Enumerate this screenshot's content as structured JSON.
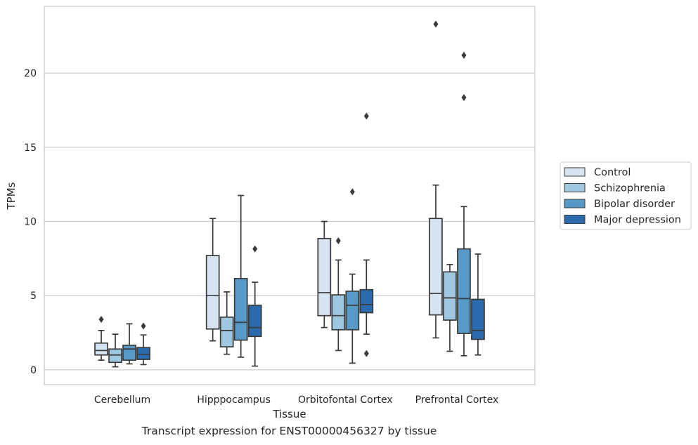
{
  "chart_data": {
    "type": "box",
    "xlabel": "Tissue",
    "ylabel": "TPMs",
    "caption": "Transcript expression for ENST00000456327 by tissue",
    "ylim": [
      -1,
      24.5
    ],
    "yticks": [
      0,
      5,
      10,
      15,
      20
    ],
    "grid": true,
    "legend_position": "right",
    "categories": [
      "Cerebellum",
      "Hipppocampus",
      "Orbitofontal Cortex",
      "Prefrontal Cortex"
    ],
    "series": [
      {
        "name": "Control",
        "color": "#d6e4f2",
        "boxes": [
          {
            "whisker_low": 0.65,
            "q1": 1.0,
            "median": 1.3,
            "q3": 1.8,
            "whisker_high": 2.65,
            "outliers": [
              3.4
            ]
          },
          {
            "whisker_low": 1.95,
            "q1": 2.75,
            "median": 5.0,
            "q3": 7.7,
            "whisker_high": 10.2,
            "outliers": []
          },
          {
            "whisker_low": 2.85,
            "q1": 3.65,
            "median": 5.2,
            "q3": 8.85,
            "whisker_high": 10.0,
            "outliers": []
          },
          {
            "whisker_low": 2.15,
            "q1": 3.7,
            "median": 5.15,
            "q3": 10.2,
            "whisker_high": 12.45,
            "outliers": [
              23.3
            ]
          }
        ]
      },
      {
        "name": "Schizophrenia",
        "color": "#9fc8e0",
        "boxes": [
          {
            "whisker_low": 0.2,
            "q1": 0.5,
            "median": 1.0,
            "q3": 1.4,
            "whisker_high": 2.4,
            "outliers": []
          },
          {
            "whisker_low": 1.05,
            "q1": 1.55,
            "median": 2.65,
            "q3": 3.55,
            "whisker_high": 5.25,
            "outliers": []
          },
          {
            "whisker_low": 1.3,
            "q1": 2.7,
            "median": 3.65,
            "q3": 5.05,
            "whisker_high": 7.4,
            "outliers": [
              8.7
            ]
          },
          {
            "whisker_low": 1.25,
            "q1": 3.35,
            "median": 4.85,
            "q3": 6.6,
            "whisker_high": 7.1,
            "outliers": []
          }
        ]
      },
      {
        "name": "Bipolar disorder",
        "color": "#5799c7",
        "boxes": [
          {
            "whisker_low": 0.4,
            "q1": 0.65,
            "median": 1.4,
            "q3": 1.65,
            "whisker_high": 3.1,
            "outliers": []
          },
          {
            "whisker_low": 0.85,
            "q1": 2.0,
            "median": 3.2,
            "q3": 6.15,
            "whisker_high": 11.75,
            "outliers": []
          },
          {
            "whisker_low": 0.45,
            "q1": 2.7,
            "median": 4.35,
            "q3": 5.3,
            "whisker_high": 6.45,
            "outliers": [
              12.0
            ]
          },
          {
            "whisker_low": 0.95,
            "q1": 2.45,
            "median": 4.8,
            "q3": 8.15,
            "whisker_high": 11.0,
            "outliers": [
              21.2,
              18.35
            ]
          }
        ]
      },
      {
        "name": "Major depression",
        "color": "#2a6aad",
        "boxes": [
          {
            "whisker_low": 0.35,
            "q1": 0.7,
            "median": 1.05,
            "q3": 1.5,
            "whisker_high": 2.35,
            "outliers": [
              2.95
            ]
          },
          {
            "whisker_low": 0.25,
            "q1": 2.25,
            "median": 2.85,
            "q3": 4.35,
            "whisker_high": 5.9,
            "outliers": [
              8.15
            ]
          },
          {
            "whisker_low": 2.4,
            "q1": 3.85,
            "median": 4.4,
            "q3": 5.4,
            "whisker_high": 7.4,
            "outliers": [
              17.1,
              1.1
            ]
          },
          {
            "whisker_low": 1.0,
            "q1": 2.05,
            "median": 2.65,
            "q3": 4.75,
            "whisker_high": 7.8,
            "outliers": []
          }
        ]
      }
    ]
  }
}
